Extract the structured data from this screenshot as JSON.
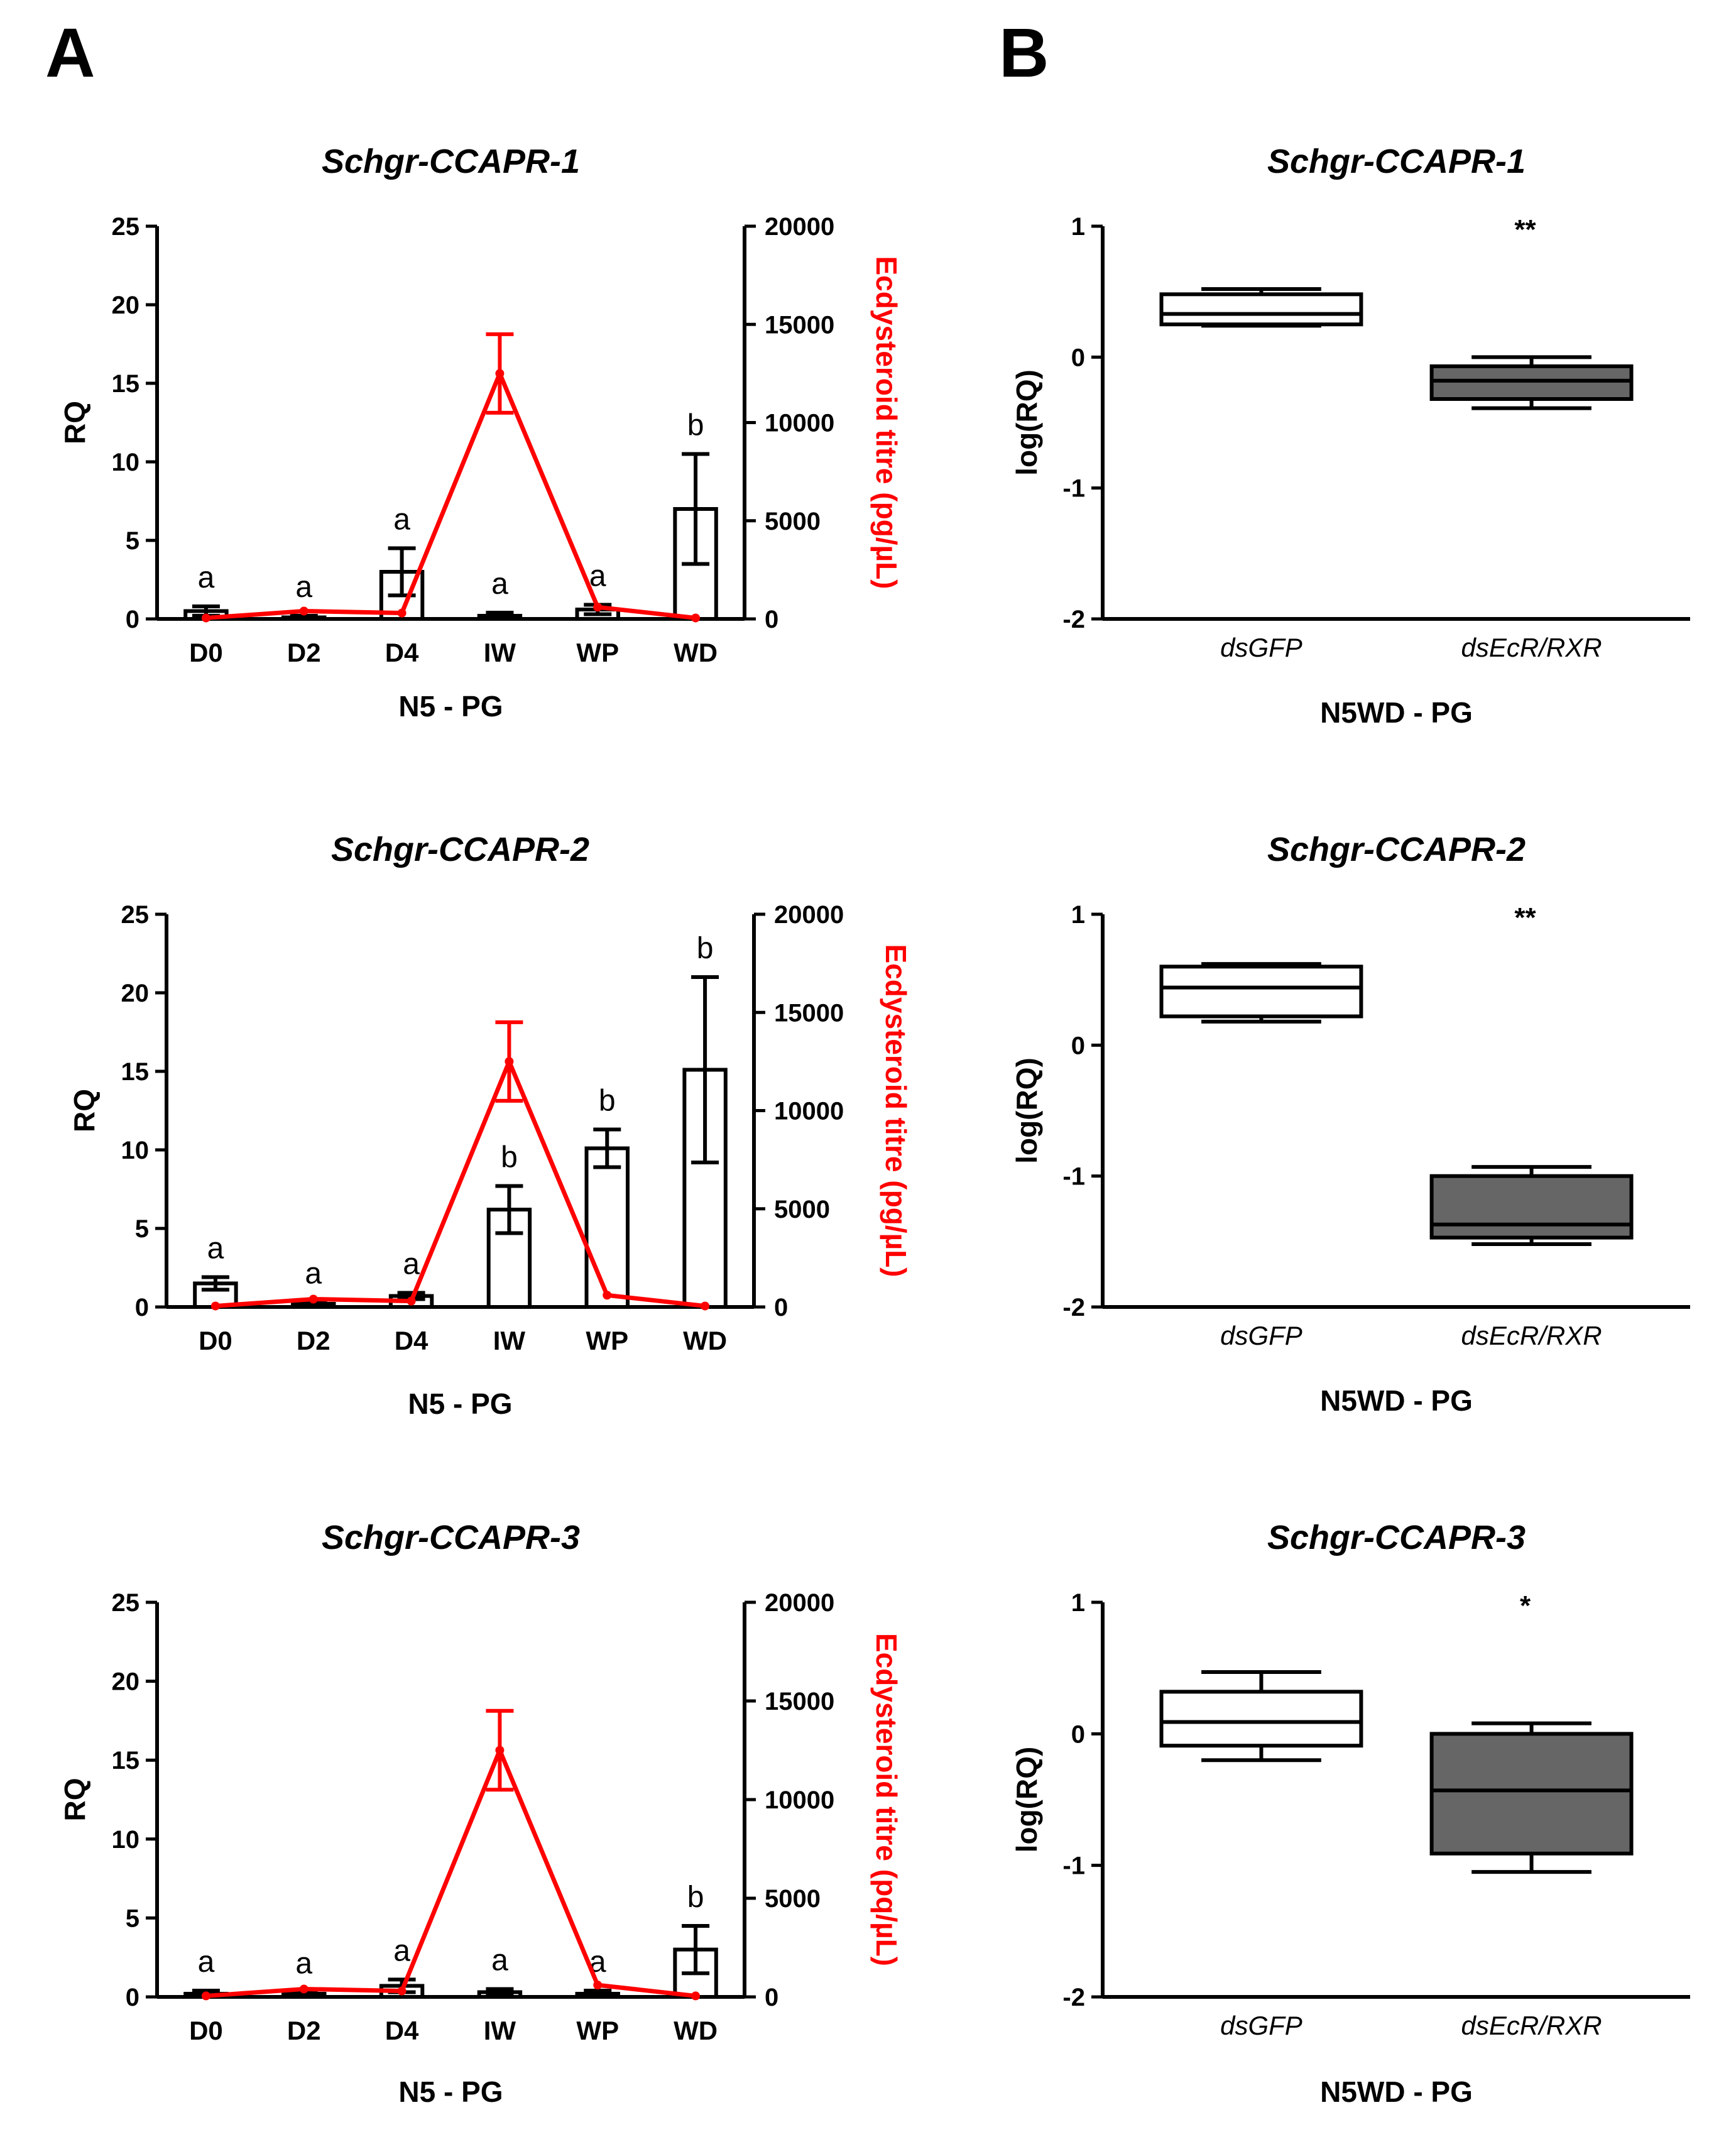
{
  "panel_labels": [
    "A",
    "B"
  ],
  "chart_data": [
    {
      "type": "bar",
      "panel": "A",
      "title": "Schgr-CCAPR-1",
      "xlabel": "N5 - PG",
      "ylabel": "RQ",
      "y2label": "Ecdysteroid titre (pg/µL)",
      "categories": [
        "D0",
        "D2",
        "D4",
        "IW",
        "WP",
        "WD"
      ],
      "ylim": [
        0,
        25
      ],
      "yticks": [
        0,
        5,
        10,
        15,
        20,
        25
      ],
      "y2lim": [
        0,
        20000
      ],
      "y2ticks": [
        0,
        5000,
        10000,
        15000,
        20000
      ],
      "y2ticklabels": [
        "0",
        "5000",
        "10000",
        "15000",
        "20000"
      ],
      "series": [
        {
          "name": "RQ",
          "values": [
            0.5,
            0.1,
            3.0,
            0.2,
            0.6,
            7.0
          ],
          "errors": [
            0.3,
            0.1,
            1.5,
            0.2,
            0.3,
            3.5
          ],
          "letters": [
            "a",
            "a",
            "a",
            "a",
            "a",
            "b"
          ]
        },
        {
          "name": "Ecdysteroid titre",
          "color": "#ff0000",
          "values": [
            50,
            400,
            300,
            12500,
            600,
            50
          ],
          "errors": [
            0,
            0,
            0,
            2000,
            0,
            0
          ]
        }
      ]
    },
    {
      "type": "bar",
      "panel": "A",
      "title": "Schgr-CCAPR-2",
      "xlabel": "N5 - PG",
      "ylabel": "RQ",
      "y2label": "Ecdysteroid titre (pg/µL)",
      "categories": [
        "D0",
        "D2",
        "D4",
        "IW",
        "WP",
        "WD"
      ],
      "ylim": [
        0,
        25
      ],
      "yticks": [
        0,
        5,
        10,
        15,
        20,
        25
      ],
      "y2lim": [
        0,
        20000
      ],
      "y2ticks": [
        0,
        5000,
        10000,
        15000,
        20000
      ],
      "y2ticklabels": [
        "0",
        "5000",
        "10000",
        "15000",
        "20000"
      ],
      "series": [
        {
          "name": "RQ",
          "values": [
            1.5,
            0.2,
            0.7,
            6.2,
            10.1,
            15.1
          ],
          "errors": [
            0.4,
            0.1,
            0.2,
            1.5,
            1.2,
            5.9
          ],
          "letters": [
            "a",
            "a",
            "a",
            "b",
            "b",
            "b"
          ]
        },
        {
          "name": "Ecdysteroid titre",
          "color": "#ff0000",
          "values": [
            50,
            400,
            300,
            12500,
            600,
            50
          ],
          "errors": [
            0,
            0,
            0,
            2000,
            0,
            0
          ]
        }
      ]
    },
    {
      "type": "bar",
      "panel": "A",
      "title": "Schgr-CCAPR-3",
      "xlabel": "N5 - PG",
      "ylabel": "RQ",
      "y2label": "Ecdysteroid titre (pq/µL)",
      "categories": [
        "D0",
        "D2",
        "D4",
        "IW",
        "WP",
        "WD"
      ],
      "ylim": [
        0,
        25
      ],
      "yticks": [
        0,
        5,
        10,
        15,
        20,
        25
      ],
      "y2lim": [
        0,
        20000
      ],
      "y2ticks": [
        0,
        5000,
        10000,
        15000,
        20000
      ],
      "y2ticklabels": [
        "0",
        "5000",
        "10000",
        "15000",
        "20000"
      ],
      "series": [
        {
          "name": "RQ",
          "values": [
            0.2,
            0.2,
            0.7,
            0.3,
            0.2,
            3.0
          ],
          "errors": [
            0.2,
            0.1,
            0.4,
            0.2,
            0.2,
            1.5
          ],
          "letters": [
            "a",
            "a",
            "a",
            "a",
            "a",
            "b"
          ]
        },
        {
          "name": "Ecdysteroid titre",
          "color": "#ff0000",
          "values": [
            50,
            400,
            300,
            12500,
            600,
            50
          ],
          "errors": [
            0,
            0,
            0,
            2000,
            0,
            0
          ]
        }
      ]
    },
    {
      "type": "box",
      "panel": "B",
      "title": "Schgr-CCAPR-1",
      "xlabel": "N5WD - PG",
      "ylabel": "log(RQ)",
      "categories": [
        "dsGFP",
        "dsEcR/RXR"
      ],
      "ylim": [
        -2,
        1
      ],
      "yticks": [
        -2,
        -1,
        0,
        1
      ],
      "yticklabels": [
        "-2",
        "-1",
        "0",
        "1"
      ],
      "significance": "**",
      "boxes": [
        {
          "name": "dsGFP",
          "min": 0.24,
          "q1": 0.25,
          "median": 0.33,
          "q3": 0.48,
          "max": 0.52,
          "fill": "#ffffff"
        },
        {
          "name": "dsEcR/RXR",
          "min": -0.39,
          "q1": -0.32,
          "median": -0.18,
          "q3": -0.07,
          "max": 0.0,
          "fill": "#666666"
        }
      ]
    },
    {
      "type": "box",
      "panel": "B",
      "title": "Schgr-CCAPR-2",
      "xlabel": "N5WD - PG",
      "ylabel": "log(RQ)",
      "categories": [
        "dsGFP",
        "dsEcR/RXR"
      ],
      "ylim": [
        -2,
        1
      ],
      "yticks": [
        -2,
        -1,
        0,
        1
      ],
      "yticklabels": [
        "-2",
        "-1",
        "0",
        "1"
      ],
      "significance": "**",
      "boxes": [
        {
          "name": "dsGFP",
          "min": 0.18,
          "q1": 0.22,
          "median": 0.44,
          "q3": 0.6,
          "max": 0.62,
          "fill": "#ffffff"
        },
        {
          "name": "dsEcR/RXR",
          "min": -1.52,
          "q1": -1.47,
          "median": -1.37,
          "q3": -1.0,
          "max": -0.93,
          "fill": "#666666"
        }
      ]
    },
    {
      "type": "box",
      "panel": "B",
      "title": "Schgr-CCAPR-3",
      "xlabel": "N5WD - PG",
      "ylabel": "log(RQ)",
      "categories": [
        "dsGFP",
        "dsEcR/RXR"
      ],
      "ylim": [
        -2,
        1
      ],
      "yticks": [
        -2,
        -1,
        0,
        1
      ],
      "yticklabels": [
        "-2",
        "-1",
        "0",
        "1"
      ],
      "significance": "*",
      "boxes": [
        {
          "name": "dsGFP",
          "min": -0.2,
          "q1": -0.09,
          "median": 0.09,
          "q3": 0.32,
          "max": 0.47,
          "fill": "#ffffff"
        },
        {
          "name": "dsEcR/RXR",
          "min": -1.05,
          "q1": -0.91,
          "median": -0.43,
          "q3": 0.0,
          "max": 0.08,
          "fill": "#666666"
        }
      ]
    }
  ]
}
